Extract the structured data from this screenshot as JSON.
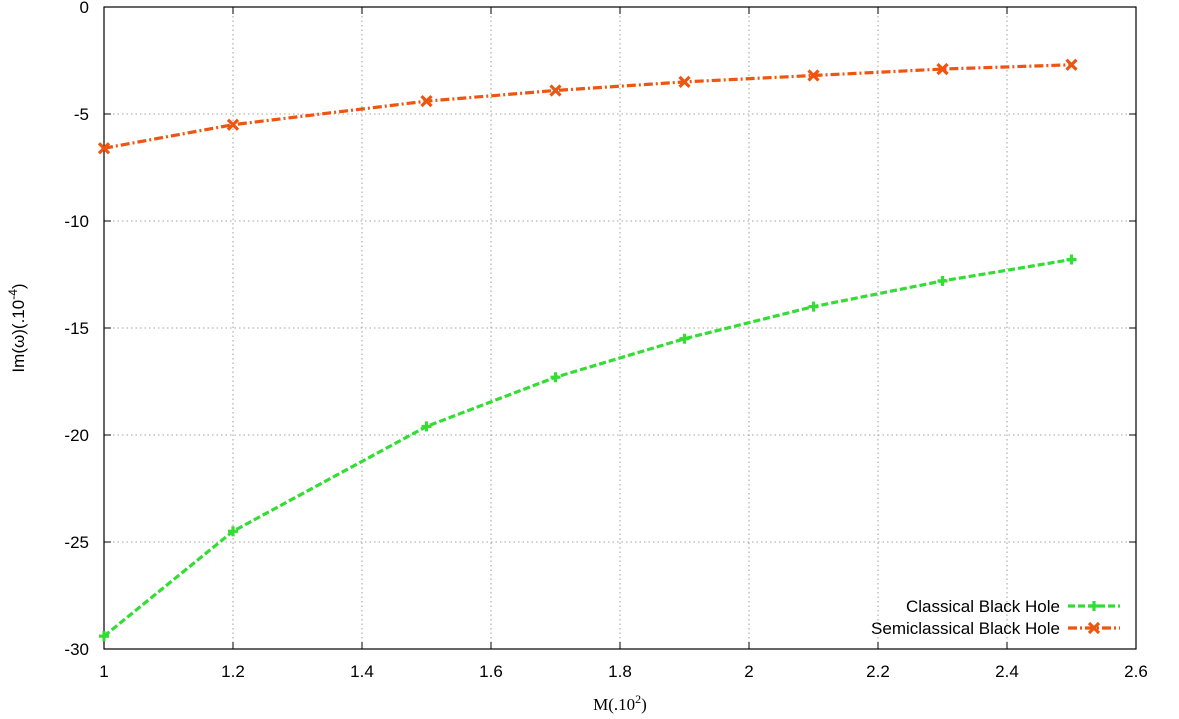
{
  "chart_data": {
    "type": "line",
    "title": "",
    "xlabel": "M(.10",
    "xlabel_sup": "2",
    "xlabel_end": ")",
    "ylabel": "Im(ω)(.10",
    "ylabel_sup": "-4",
    "ylabel_end": ")",
    "xlim": [
      1,
      2.6
    ],
    "ylim": [
      -30,
      0
    ],
    "xticks": [
      1,
      1.2,
      1.4,
      1.6,
      1.8,
      2,
      2.2,
      2.4,
      2.6
    ],
    "xtick_labels": [
      "1",
      "1.2",
      "1.4",
      "1.6",
      "1.8",
      "2",
      "2.2",
      "2.4",
      "2.6"
    ],
    "yticks": [
      0,
      -5,
      -10,
      -15,
      -20,
      -25,
      -30
    ],
    "ytick_labels": [
      "0",
      "-5",
      "-10",
      "-15",
      "-20",
      "-25",
      "-30"
    ],
    "grid": true,
    "legend_position": "bottom-right",
    "series": [
      {
        "name": "Classical Black Hole",
        "color": "#33dd33",
        "dash": "dashed",
        "marker": "plus",
        "x": [
          1,
          1.2,
          1.5,
          1.7,
          1.9,
          2.1,
          2.3,
          2.5
        ],
        "y": [
          -29.4,
          -24.5,
          -19.6,
          -17.3,
          -15.5,
          -14.0,
          -12.8,
          -11.8
        ]
      },
      {
        "name": "Semiclassical Black Hole",
        "color": "#ee5511",
        "dash": "dash-dot",
        "marker": "cross",
        "x": [
          1,
          1.2,
          1.5,
          1.7,
          1.9,
          2.1,
          2.3,
          2.5
        ],
        "y": [
          -6.6,
          -5.5,
          -4.4,
          -3.9,
          -3.5,
          -3.2,
          -2.9,
          -2.7
        ]
      }
    ]
  }
}
